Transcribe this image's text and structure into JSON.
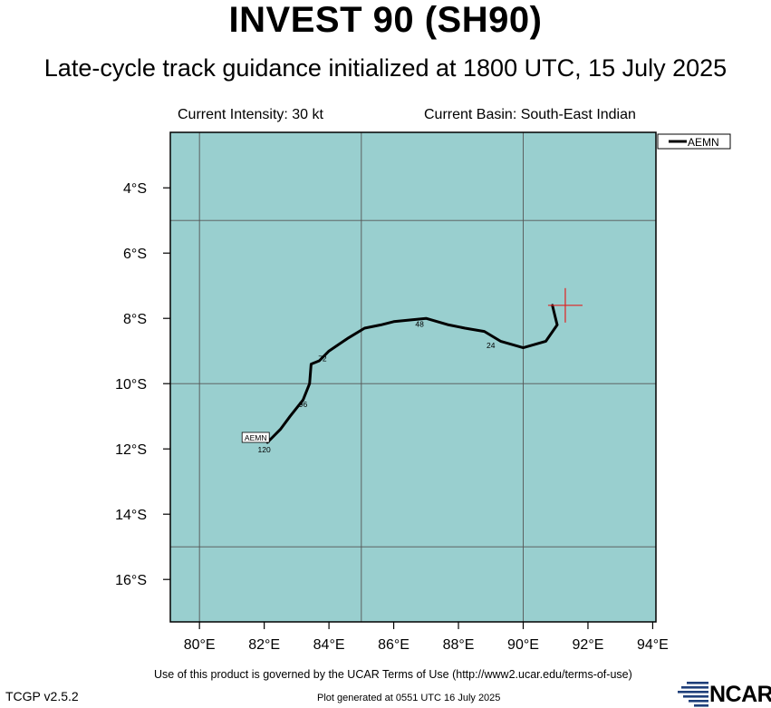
{
  "header": {
    "title": "INVEST 90 (SH90)",
    "subtitle": "Late-cycle track guidance initialized at 1800 UTC, 15 July 2025",
    "intensity": "Current Intensity: 30 kt",
    "basin": "Current Basin: South-East Indian"
  },
  "footer": {
    "terms": "Use of this product is governed by the UCAR Terms of Use (http://www2.ucar.edu/terms-of-use)",
    "generated": "Plot generated at 0551 UTC   16 July 2025",
    "version": "TCGP v2.5.2",
    "logo_text": "NCAR"
  },
  "colors": {
    "ocean": "#99cfcf",
    "track": "#000000",
    "marker": "#e02020",
    "grid": "#555555"
  },
  "chart_data": {
    "type": "line",
    "xlabel": "",
    "ylabel": "",
    "xlim": [
      79.1,
      94.1
    ],
    "ylim": [
      -17.3,
      -2.3
    ],
    "x_ticks": [
      80,
      82,
      84,
      86,
      88,
      90,
      92,
      94
    ],
    "x_tick_labels": [
      "80°E",
      "82°E",
      "84°E",
      "86°E",
      "88°E",
      "90°E",
      "92°E",
      "94°E"
    ],
    "y_ticks": [
      -4,
      -6,
      -8,
      -10,
      -12,
      -14,
      -16
    ],
    "y_tick_labels": [
      "4°S",
      "6°S",
      "8°S",
      "10°S",
      "12°S",
      "14°S",
      "16°S"
    ],
    "grid_lon": [
      80,
      85,
      90,
      95
    ],
    "grid_lat": [
      -5,
      -10,
      -15
    ],
    "grid": true,
    "legend_position": "top-right",
    "current_position": {
      "lon": 91.3,
      "lat": -7.6
    },
    "series": [
      {
        "name": "AEMN",
        "lon": [
          90.9,
          91.0,
          91.05,
          90.7,
          90.0,
          89.3,
          88.8,
          88.2,
          87.7,
          87.0,
          86.5,
          86.0,
          85.6,
          85.1,
          84.6,
          84.0,
          83.7,
          83.45,
          83.4,
          83.2,
          82.8,
          82.5,
          82.1
        ],
        "lat": [
          -7.6,
          -8.0,
          -8.2,
          -8.7,
          -8.9,
          -8.7,
          -8.4,
          -8.3,
          -8.2,
          -8.0,
          -8.05,
          -8.1,
          -8.2,
          -8.3,
          -8.6,
          -9.0,
          -9.3,
          -9.4,
          -10.0,
          -10.5,
          -11.0,
          -11.4,
          -11.8
        ],
        "tau_labels": [
          {
            "text": "24",
            "lon": 89.0,
            "lat": -8.8
          },
          {
            "text": "48",
            "lon": 86.8,
            "lat": -8.15
          },
          {
            "text": "72",
            "lon": 83.8,
            "lat": -9.2
          },
          {
            "text": "96",
            "lon": 83.2,
            "lat": -10.6
          },
          {
            "text": "120",
            "lon": 82.0,
            "lat": -12.0
          }
        ],
        "end_label": "AEMN"
      }
    ]
  }
}
